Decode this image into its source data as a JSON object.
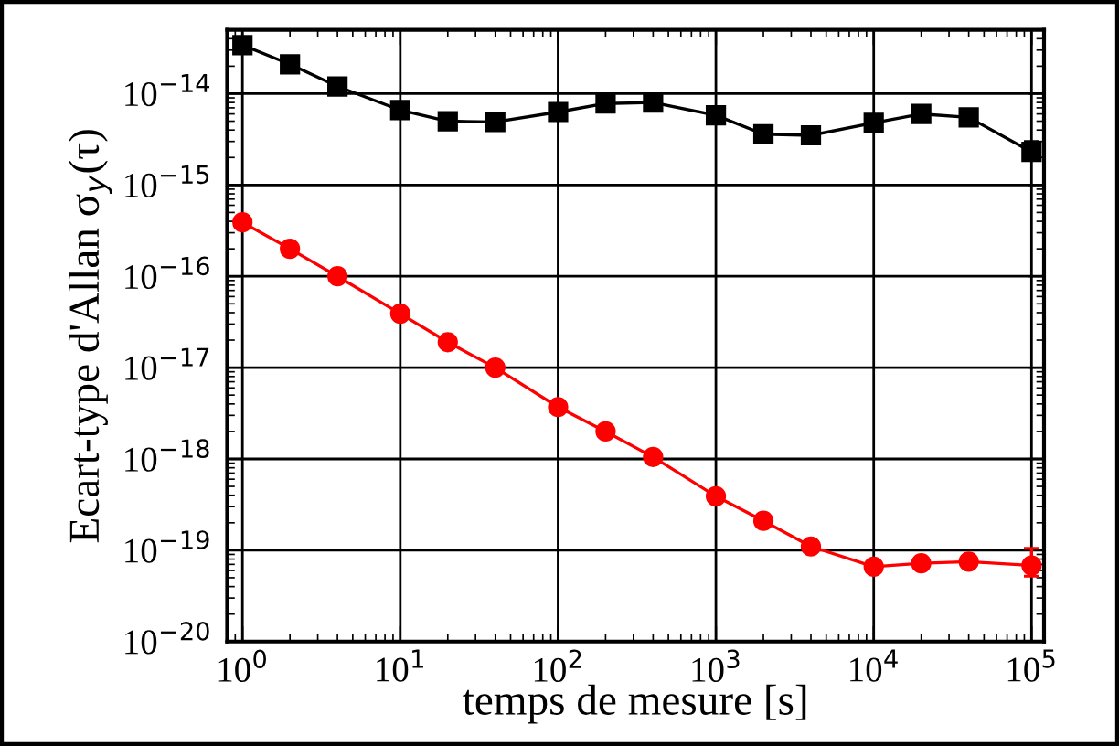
{
  "chart_data": {
    "type": "line",
    "xlabel": "temps de mesure [s]",
    "ylabel": "Ecart-type d'Allan σ$_{y}$(τ)",
    "log": "xy",
    "grid": true,
    "legend": false,
    "line_style": "solid",
    "x": [
      1,
      2,
      4,
      10,
      20,
      40,
      100,
      200,
      400,
      1000,
      2000,
      4000,
      10000,
      20000,
      40000,
      100000
    ],
    "xlim": [
      0.8,
      120000
    ],
    "ylim": [
      1e-20,
      5e-14
    ],
    "xticks": [
      {
        "value": 1,
        "label": "10$^{0}$"
      },
      {
        "value": 10,
        "label": "10$^{1}$"
      },
      {
        "value": 100,
        "label": "10$^{2}$"
      },
      {
        "value": 1000,
        "label": "10$^{3}$"
      },
      {
        "value": 10000,
        "label": "10$^{4}$"
      },
      {
        "value": 100000,
        "label": "10$^{5}$"
      }
    ],
    "yticks": [
      {
        "value": 1e-20,
        "label": "10$^{−20}$"
      },
      {
        "value": 1e-19,
        "label": "10$^{−19}$"
      },
      {
        "value": 1e-18,
        "label": "10$^{−18}$"
      },
      {
        "value": 1e-17,
        "label": "10$^{−17}$"
      },
      {
        "value": 1e-16,
        "label": "10$^{−16}$"
      },
      {
        "value": 1e-15,
        "label": "10$^{−15}$"
      },
      {
        "value": 1e-14,
        "label": "10$^{−14}$"
      }
    ],
    "series": [
      {
        "color": "#000000",
        "marker": "square",
        "values": [
          3.4e-14,
          2.1e-14,
          1.2e-14,
          6.6e-15,
          5e-15,
          4.9e-15,
          6.3e-15,
          7.8e-15,
          8e-15,
          5.8e-15,
          3.6e-15,
          3.5e-15,
          4.8e-15,
          6e-15,
          5.5e-15,
          2.3e-15
        ],
        "errors": [
          null,
          null,
          null,
          null,
          null,
          null,
          null,
          null,
          null,
          null,
          null,
          null,
          null,
          null,
          null,
          [
            2e-15,
            3e-15
          ]
        ]
      },
      {
        "color": "#ff0000",
        "marker": "circle",
        "values": [
          3.9e-16,
          2e-16,
          1e-16,
          3.9e-17,
          1.9e-17,
          1e-17,
          3.7e-18,
          2e-18,
          1.05e-18,
          3.9e-19,
          2.1e-19,
          1.1e-19,
          6.6e-20,
          7.2e-20,
          7.5e-20,
          6.8e-20
        ],
        "errors": [
          null,
          null,
          null,
          null,
          null,
          null,
          null,
          null,
          null,
          null,
          null,
          null,
          null,
          [
            6.5e-20,
            8e-20
          ],
          [
            6.6e-20,
            8.6e-20
          ],
          [
            5.2e-20,
            1.05e-19
          ]
        ]
      }
    ]
  }
}
